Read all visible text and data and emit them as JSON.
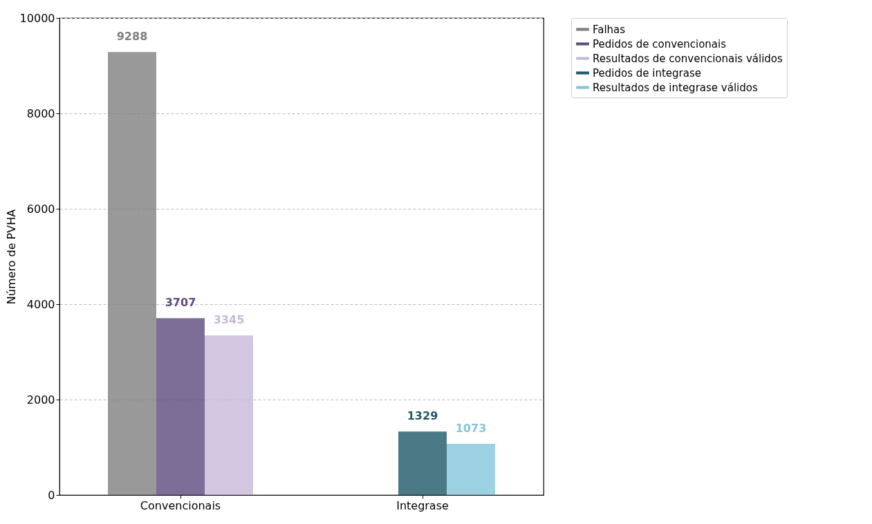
{
  "chart_data": {
    "type": "bar",
    "ylabel": "Número de PVHA",
    "categories": [
      "Convencionais",
      "Integrase"
    ],
    "series": [
      {
        "name": "Falhas",
        "color": "#7f7f7f",
        "values": [
          9288,
          null
        ]
      },
      {
        "name": "Pedidos de convencionais",
        "color": "#5d4a7e",
        "values": [
          3707,
          null
        ]
      },
      {
        "name": "Resultados de convencionais válidos",
        "color": "#c7b8d8",
        "values": [
          3345,
          null
        ]
      },
      {
        "name": "Pedidos de integrase",
        "color": "#1e5866",
        "values": [
          null,
          1329
        ]
      },
      {
        "name": "Resultados de integrase válidos",
        "color": "#83c6da",
        "values": [
          null,
          1073
        ]
      }
    ],
    "ylim": [
      0,
      10000
    ],
    "yticks": [
      0,
      2000,
      4000,
      6000,
      8000,
      10000
    ],
    "grid": "y",
    "legend": "top right",
    "data_labels": true
  }
}
